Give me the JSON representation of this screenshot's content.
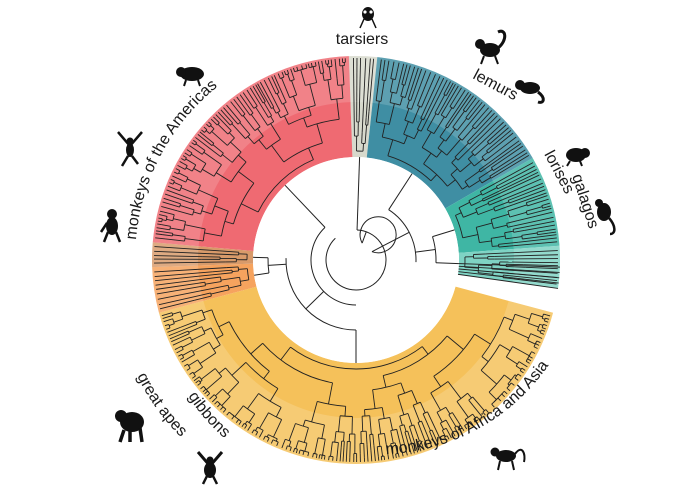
{
  "diagram": {
    "type": "circular-phylogenetic-tree",
    "groups": [
      {
        "id": "tarsiers",
        "label": "tarsiers",
        "color": "#d7d9cc",
        "icon": "tarsier-icon"
      },
      {
        "id": "lemurs",
        "label": "lemurs",
        "color": "#3f8ea3",
        "icon": "lemur-icon"
      },
      {
        "id": "lorises",
        "label": "lorises",
        "color": "#3fb6a4",
        "icon": "loris-icon"
      },
      {
        "id": "galagos",
        "label": "galagos",
        "color": "#7fd3c4",
        "icon": "galago-icon"
      },
      {
        "id": "africa-asia",
        "label": "monkeys of Africa and Asia",
        "color": "#f5c15a",
        "icon": "monkey-icon"
      },
      {
        "id": "gibbons",
        "label": "gibbons",
        "color": "#f6a35e",
        "icon": "gibbon-icon"
      },
      {
        "id": "great-apes",
        "label": "great apes",
        "color": "#d89a6a",
        "icon": "gorilla-icon"
      },
      {
        "id": "americas",
        "label": "monkeys of the Americas",
        "color": "#ef6a72",
        "icon": "spider-monkey-icon"
      }
    ]
  }
}
